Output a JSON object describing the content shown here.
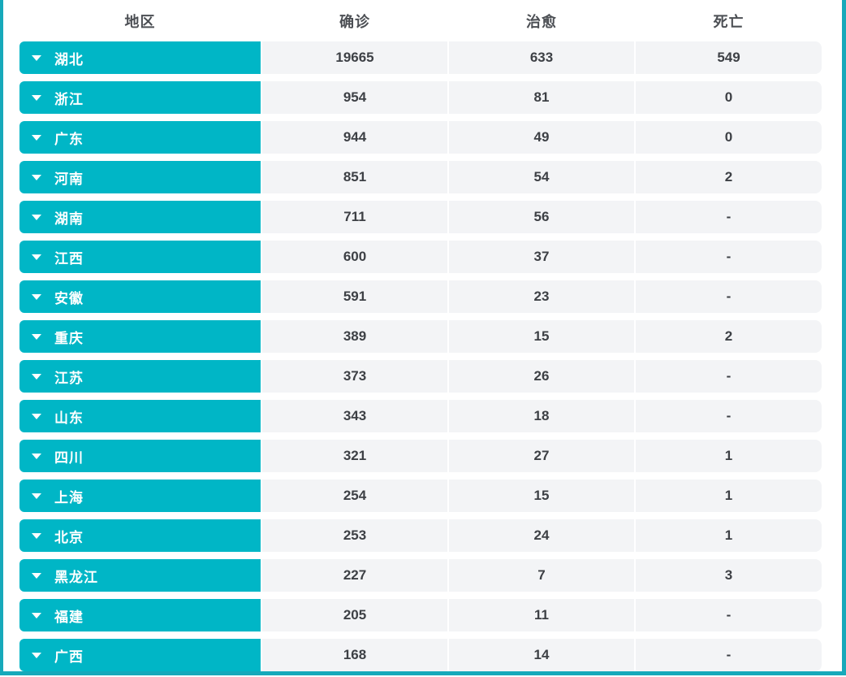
{
  "theme": {
    "accent_color": "#00b6c6",
    "panel_border_color": "#16a9ba",
    "cell_background_color": "#f3f4f6",
    "header_text_color": "#4c4f54",
    "value_text_color": "#3d4045"
  },
  "table": {
    "columns": [
      "地区",
      "确诊",
      "治愈",
      "死亡"
    ],
    "rows": [
      {
        "region": "湖北",
        "confirmed": "19665",
        "cured": "633",
        "deaths": "549"
      },
      {
        "region": "浙江",
        "confirmed": "954",
        "cured": "81",
        "deaths": "0"
      },
      {
        "region": "广东",
        "confirmed": "944",
        "cured": "49",
        "deaths": "0"
      },
      {
        "region": "河南",
        "confirmed": "851",
        "cured": "54",
        "deaths": "2"
      },
      {
        "region": "湖南",
        "confirmed": "711",
        "cured": "56",
        "deaths": "-"
      },
      {
        "region": "江西",
        "confirmed": "600",
        "cured": "37",
        "deaths": "-"
      },
      {
        "region": "安徽",
        "confirmed": "591",
        "cured": "23",
        "deaths": "-"
      },
      {
        "region": "重庆",
        "confirmed": "389",
        "cured": "15",
        "deaths": "2"
      },
      {
        "region": "江苏",
        "confirmed": "373",
        "cured": "26",
        "deaths": "-"
      },
      {
        "region": "山东",
        "confirmed": "343",
        "cured": "18",
        "deaths": "-"
      },
      {
        "region": "四川",
        "confirmed": "321",
        "cured": "27",
        "deaths": "1"
      },
      {
        "region": "上海",
        "confirmed": "254",
        "cured": "15",
        "deaths": "1"
      },
      {
        "region": "北京",
        "confirmed": "253",
        "cured": "24",
        "deaths": "1"
      },
      {
        "region": "黑龙江",
        "confirmed": "227",
        "cured": "7",
        "deaths": "3"
      },
      {
        "region": "福建",
        "confirmed": "205",
        "cured": "11",
        "deaths": "-"
      },
      {
        "region": "广西",
        "confirmed": "168",
        "cured": "14",
        "deaths": "-"
      }
    ]
  },
  "chart_data": {
    "type": "table",
    "title": "",
    "columns": [
      "地区",
      "确诊",
      "治愈",
      "死亡"
    ],
    "rows": [
      [
        "湖北",
        19665,
        633,
        549
      ],
      [
        "浙江",
        954,
        81,
        0
      ],
      [
        "广东",
        944,
        49,
        0
      ],
      [
        "河南",
        851,
        54,
        2
      ],
      [
        "湖南",
        711,
        56,
        null
      ],
      [
        "江西",
        600,
        37,
        null
      ],
      [
        "安徽",
        591,
        23,
        null
      ],
      [
        "重庆",
        389,
        15,
        2
      ],
      [
        "江苏",
        373,
        26,
        null
      ],
      [
        "山东",
        343,
        18,
        null
      ],
      [
        "四川",
        321,
        27,
        1
      ],
      [
        "上海",
        254,
        15,
        1
      ],
      [
        "北京",
        253,
        24,
        1
      ],
      [
        "黑龙江",
        227,
        7,
        3
      ],
      [
        "福建",
        205,
        11,
        null
      ],
      [
        "广西",
        168,
        14,
        null
      ]
    ],
    "notes": "dash (-) shown in source UI for null death counts"
  }
}
